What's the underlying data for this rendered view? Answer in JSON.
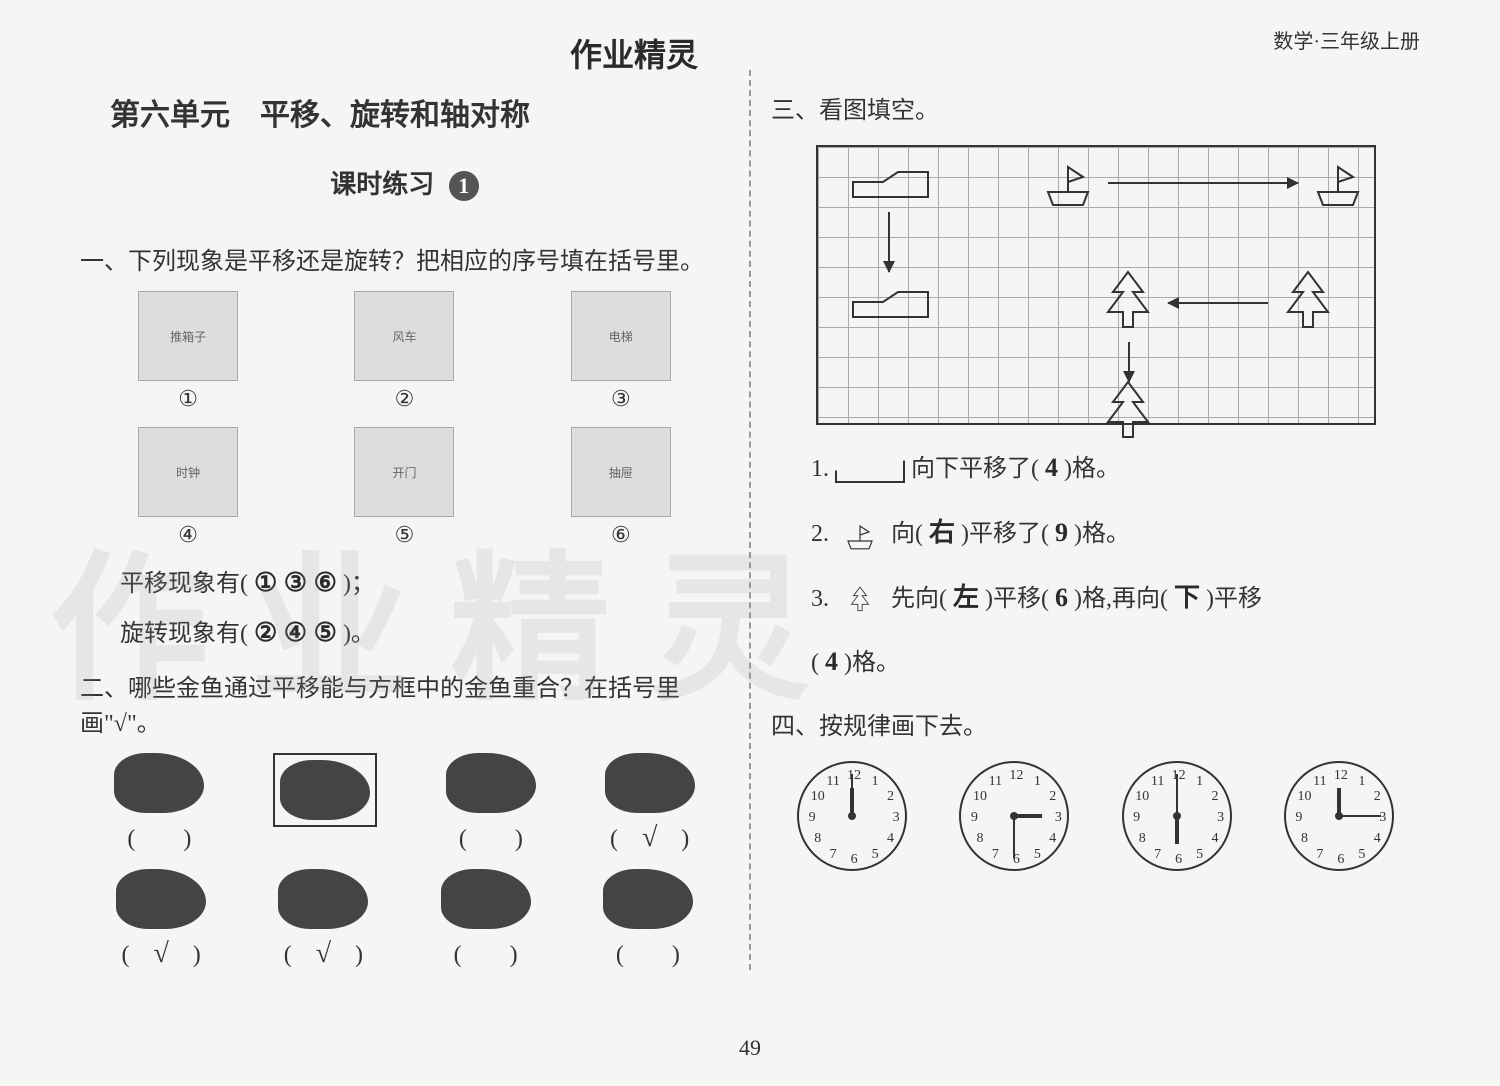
{
  "header": {
    "subject_grade": "数学·三年级上册",
    "handwritten_top": "作业精灵"
  },
  "left": {
    "unit_title": "第六单元　平移、旋转和轴对称",
    "lesson_label": "课时练习",
    "lesson_number": "1",
    "q1": {
      "title": "一、下列现象是平移还是旋转？把相应的序号填在括号里。",
      "images_row1": [
        "①",
        "②",
        "③"
      ],
      "images_row2": [
        "④",
        "⑤",
        "⑥"
      ],
      "line1_label": "平移现象有(",
      "line1_answer": "① ③ ⑥",
      "line1_end": ")；",
      "line2_label": "旋转现象有(",
      "line2_answer": "② ④ ⑤",
      "line2_end": ")。"
    },
    "q2": {
      "title": "二、哪些金鱼通过平移能与方框中的金鱼重合？在括号里画\"√\"。",
      "row1_checks": [
        "",
        "",
        "",
        "√"
      ],
      "row2_checks": [
        "√",
        "√",
        "",
        ""
      ],
      "boxed_index": 1
    }
  },
  "right": {
    "q3": {
      "title": "三、看图填空。",
      "line1_pre": "1. ",
      "line1_mid": "向下平移了(",
      "line1_answer": "4",
      "line1_end": ")格。",
      "line2_pre": "2. ",
      "line2_mid": "向(",
      "line2_ans1": "右",
      "line2_mid2": ")平移了(",
      "line2_ans2": "9",
      "line2_end": ")格。",
      "line3_pre": "3. ",
      "line3_mid": "先向(",
      "line3_ans1": "左",
      "line3_mid2": ")平移(",
      "line3_ans2": "6",
      "line3_mid3": ")格,再向(",
      "line3_ans3": "下",
      "line3_end": ")平移",
      "line3b_pre": "(",
      "line3b_ans": "4",
      "line3b_end": ")格。"
    },
    "q4": {
      "title": "四、按规律画下去。",
      "clocks": [
        {
          "hour": 12,
          "minute": 12,
          "numbers": true
        },
        {
          "hour": 3,
          "minute": 6,
          "numbers": true
        },
        {
          "hour": 6,
          "minute": 12,
          "numbers": true
        },
        {
          "hour": 12,
          "minute": 3,
          "numbers": true,
          "drawn": true
        }
      ],
      "clock_numbers": [
        "12",
        "1",
        "2",
        "3",
        "4",
        "5",
        "6",
        "7",
        "8",
        "9",
        "10",
        "11"
      ]
    }
  },
  "page_number": "49",
  "watermark_text": "作业精灵",
  "colors": {
    "bg": "#f5f5f3",
    "text": "#333333",
    "border": "#333333",
    "grid": "#aaaaaa"
  }
}
